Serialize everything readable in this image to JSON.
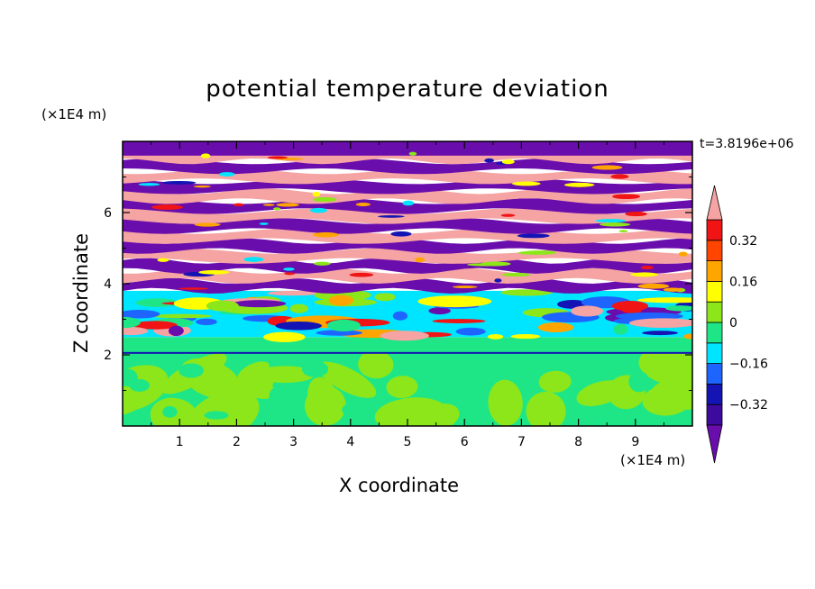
{
  "chart_data": {
    "type": "heatmap",
    "title": "potential temperature deviation",
    "xlabel": "X coordinate",
    "ylabel": "Z coordinate",
    "x_unit_label": "(×1E4 m)",
    "y_unit_label": "(×1E4 m)",
    "time_label": "t=3.8196e+06",
    "xlim": [
      0,
      10
    ],
    "ylim": [
      0,
      8
    ],
    "x_ticks": [
      "1",
      "2",
      "3",
      "4",
      "5",
      "6",
      "7",
      "8",
      "9"
    ],
    "y_ticks": [
      "2",
      "4",
      "6"
    ],
    "colorbar": {
      "levels": [
        -0.4,
        -0.32,
        -0.24,
        -0.16,
        -0.08,
        0,
        0.08,
        0.16,
        0.24,
        0.32,
        0.4
      ],
      "colors": [
        "#6a0dad",
        "#3d0a9e",
        "#1414b4",
        "#1e64ff",
        "#00e5ff",
        "#1ee687",
        "#8ce619",
        "#ffff00",
        "#ffa500",
        "#ff4500",
        "#f01414",
        "#f5a3a3"
      ],
      "tick_labels": [
        "0.32",
        "0.16",
        "0",
        "−0.16",
        "−0.32"
      ],
      "tick_values": [
        0.32,
        0.16,
        0,
        -0.16,
        -0.32
      ],
      "extend": "both"
    },
    "regions": [
      {
        "z_range": [
          0,
          2.0
        ],
        "pattern": "green/cyan-green turbulent mixed layer"
      },
      {
        "z_range": [
          2.0,
          3.8
        ],
        "pattern": "mixed cyan, blue, yellow, red small-scale structures"
      },
      {
        "z_range": [
          3.8,
          8.0
        ],
        "pattern": "alternating purple and pink horizontal layers"
      }
    ]
  }
}
